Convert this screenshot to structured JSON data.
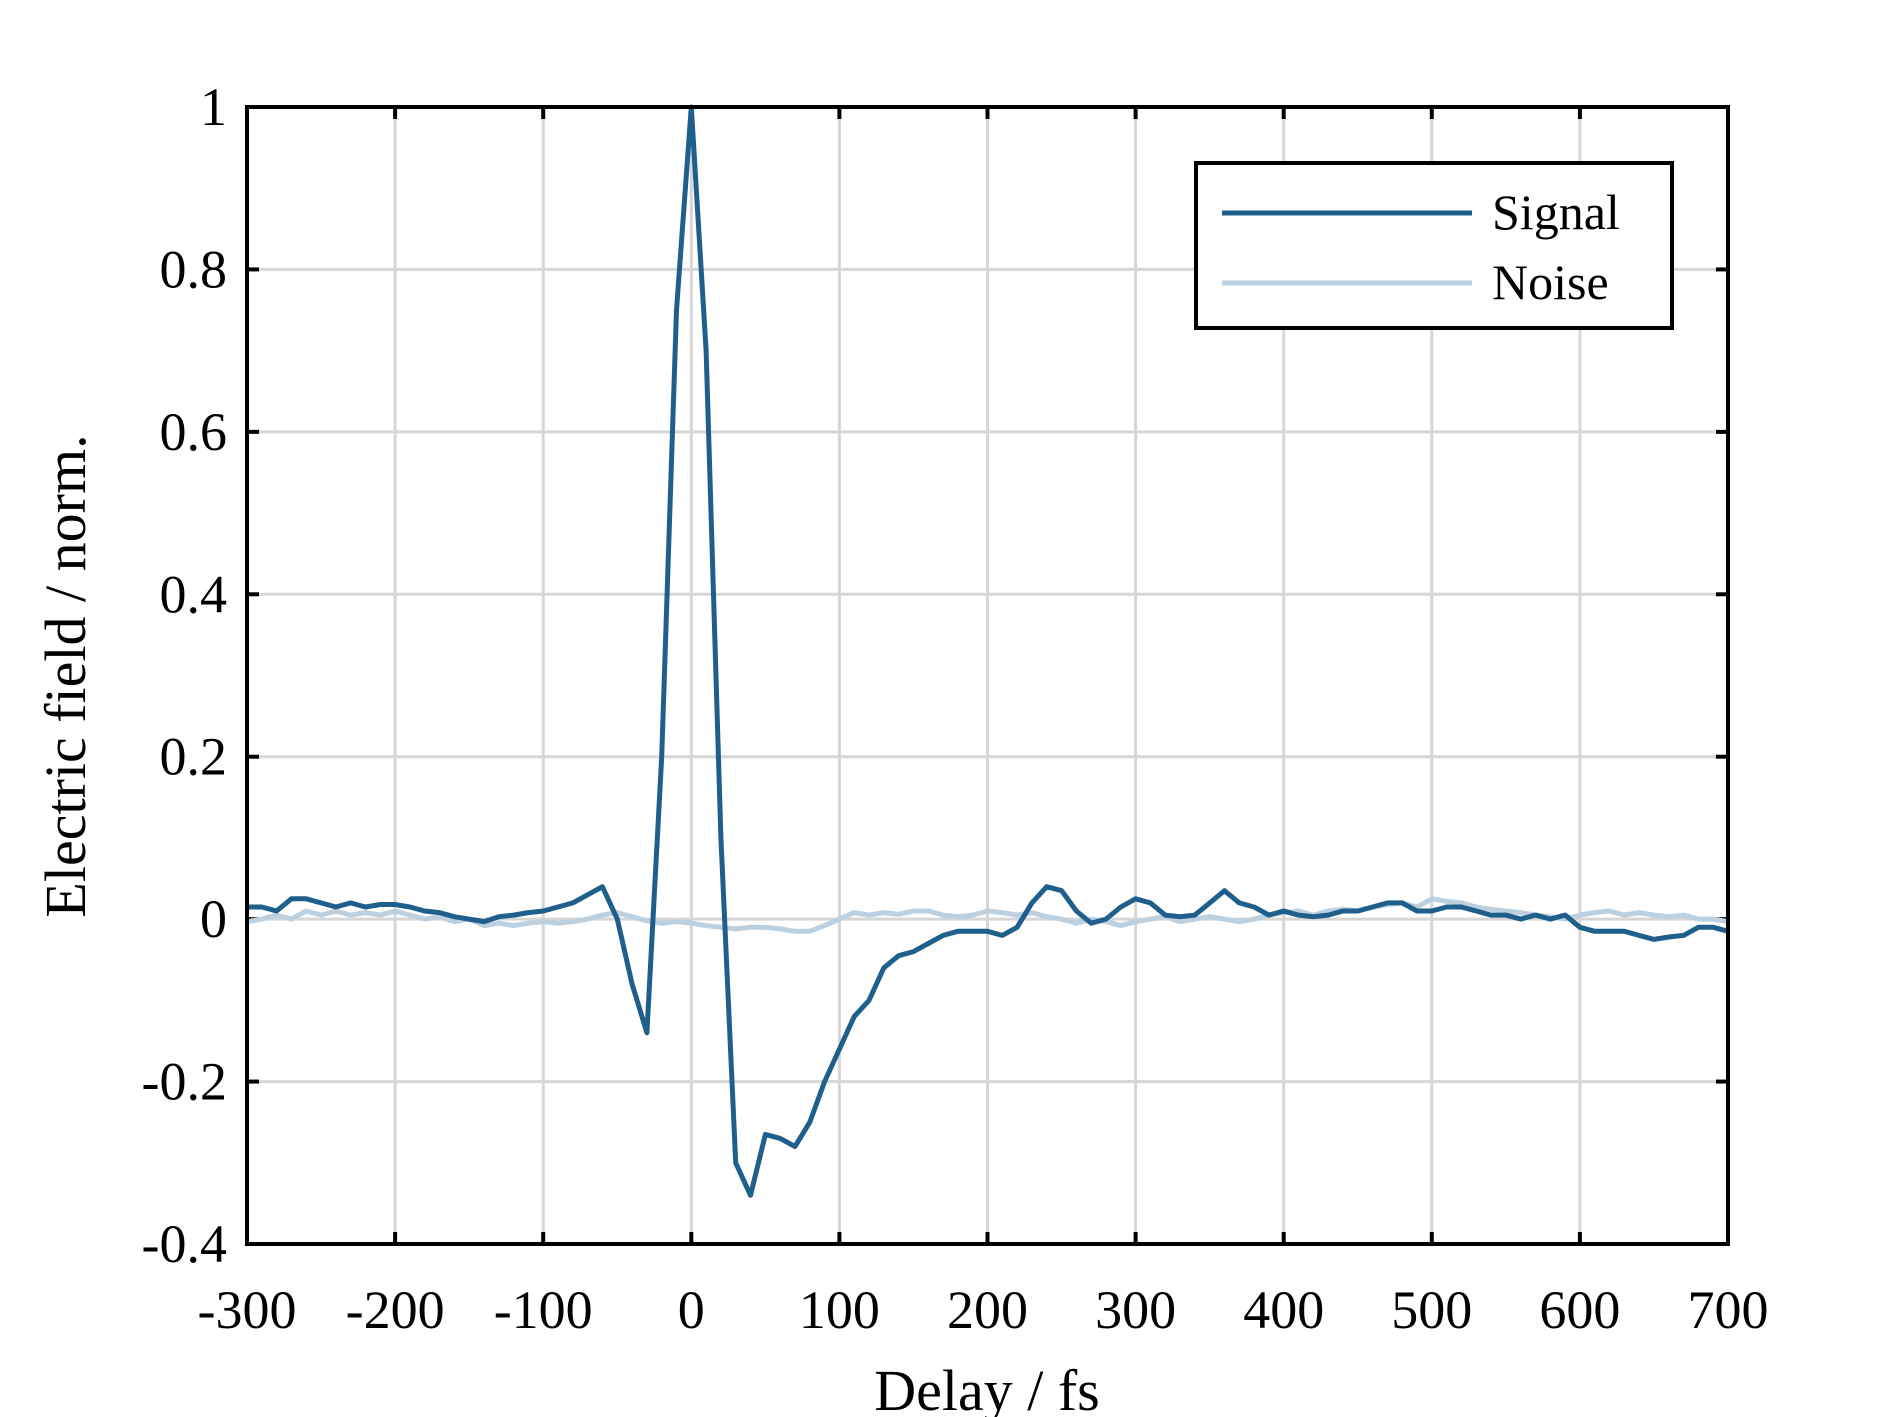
{
  "chart_data": {
    "type": "line",
    "x_label": "Delay / fs",
    "y_label": "Electric field / norm.",
    "x": [
      -300,
      -290,
      -280,
      -270,
      -260,
      -250,
      -240,
      -230,
      -220,
      -210,
      -200,
      -190,
      -180,
      -170,
      -160,
      -150,
      -140,
      -130,
      -120,
      -110,
      -100,
      -90,
      -80,
      -70,
      -60,
      -50,
      -40,
      -30,
      -20,
      -10,
      0,
      10,
      20,
      30,
      40,
      50,
      60,
      70,
      80,
      90,
      100,
      110,
      120,
      130,
      140,
      150,
      160,
      170,
      180,
      190,
      200,
      210,
      220,
      230,
      240,
      250,
      260,
      270,
      280,
      290,
      300,
      310,
      320,
      330,
      340,
      350,
      360,
      370,
      380,
      390,
      400,
      410,
      420,
      430,
      440,
      450,
      460,
      470,
      480,
      490,
      500,
      510,
      520,
      530,
      540,
      550,
      560,
      570,
      580,
      590,
      600,
      610,
      620,
      630,
      640,
      650,
      660,
      670,
      680,
      690,
      700
    ],
    "series": [
      {
        "name": "Signal",
        "color": "#1f5f8b",
        "values": [
          0.015,
          0.015,
          0.01,
          0.025,
          0.025,
          0.02,
          0.015,
          0.02,
          0.015,
          0.018,
          0.018,
          0.015,
          0.01,
          0.008,
          0.003,
          0.0,
          -0.003,
          0.003,
          0.005,
          0.008,
          0.01,
          0.015,
          0.02,
          0.03,
          0.04,
          0.0,
          -0.08,
          -0.14,
          0.2,
          0.75,
          1.0,
          0.7,
          0.1,
          -0.3,
          -0.34,
          -0.265,
          -0.27,
          -0.28,
          -0.25,
          -0.2,
          -0.16,
          -0.12,
          -0.1,
          -0.06,
          -0.045,
          -0.04,
          -0.03,
          -0.02,
          -0.015,
          -0.015,
          -0.015,
          -0.02,
          -0.01,
          0.02,
          0.04,
          0.035,
          0.01,
          -0.005,
          0.0,
          0.015,
          0.025,
          0.02,
          0.005,
          0.003,
          0.005,
          0.02,
          0.035,
          0.02,
          0.015,
          0.005,
          0.01,
          0.005,
          0.003,
          0.005,
          0.01,
          0.01,
          0.015,
          0.02,
          0.02,
          0.01,
          0.01,
          0.015,
          0.015,
          0.01,
          0.005,
          0.005,
          0.0,
          0.005,
          0.0,
          0.005,
          -0.01,
          -0.015,
          -0.015,
          -0.015,
          -0.02,
          -0.025,
          -0.022,
          -0.02,
          -0.01,
          -0.01,
          -0.015
        ]
      },
      {
        "name": "Noise",
        "color": "#bcd0e0",
        "values": [
          -0.003,
          0.0,
          0.005,
          0.0,
          0.01,
          0.005,
          0.01,
          0.005,
          0.008,
          0.005,
          0.01,
          0.005,
          0.0,
          0.003,
          -0.003,
          0.0,
          -0.008,
          -0.005,
          -0.008,
          -0.005,
          -0.003,
          -0.005,
          -0.003,
          0.0,
          0.005,
          0.008,
          0.003,
          -0.002,
          -0.005,
          -0.003,
          -0.005,
          -0.008,
          -0.01,
          -0.012,
          -0.01,
          -0.01,
          -0.012,
          -0.015,
          -0.015,
          -0.008,
          0.0,
          0.008,
          0.005,
          0.008,
          0.006,
          0.01,
          0.01,
          0.005,
          0.003,
          0.005,
          0.01,
          0.008,
          0.005,
          0.008,
          0.003,
          0.0,
          -0.005,
          0.0,
          -0.003,
          -0.008,
          -0.003,
          0.0,
          0.003,
          -0.003,
          0.0,
          0.003,
          0.0,
          -0.003,
          0.0,
          0.005,
          0.008,
          0.01,
          0.005,
          0.01,
          0.012,
          0.01,
          0.015,
          0.018,
          0.02,
          0.015,
          0.025,
          0.022,
          0.02,
          0.015,
          0.012,
          0.01,
          0.008,
          0.005,
          0.003,
          0.0,
          0.005,
          0.008,
          0.01,
          0.005,
          0.008,
          0.005,
          0.003,
          0.005,
          0.0,
          0.0,
          -0.003
        ]
      }
    ],
    "xlim": [
      -300,
      700
    ],
    "xticks": [
      -300,
      -200,
      -100,
      0,
      100,
      200,
      300,
      400,
      500,
      600,
      700
    ],
    "ylim": [
      -0.4,
      1
    ],
    "yticks": [
      -0.4,
      -0.2,
      0,
      0.2,
      0.4,
      0.6,
      0.8,
      1
    ],
    "grid": true,
    "legend": "upper right"
  }
}
